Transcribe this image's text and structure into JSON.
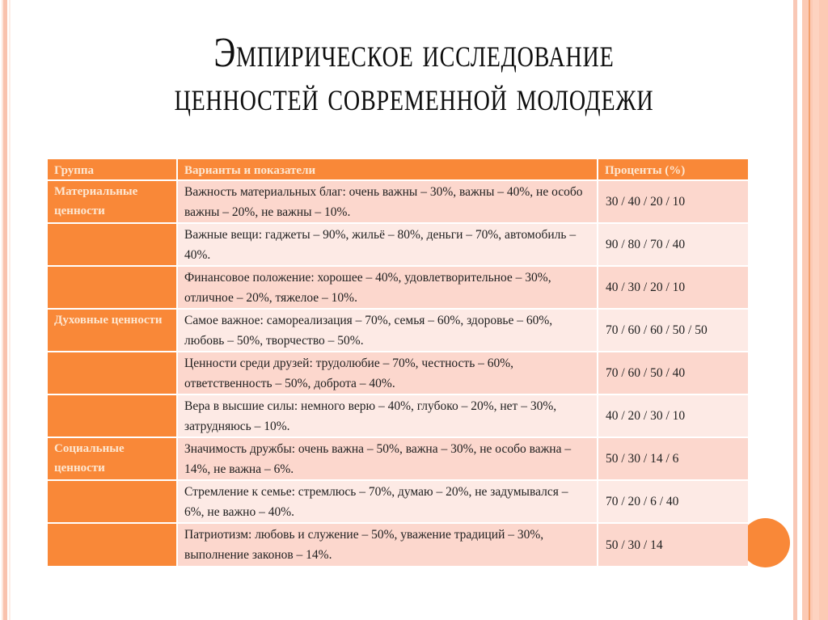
{
  "slide": {
    "title_line_1": "Эмпирическое исследование",
    "title_line_2": "ценностей современной молодежи"
  },
  "theme": {
    "accent": "#F98838",
    "header_text": "#FDE7D2",
    "row_dark": "#FCD7CD",
    "row_light": "#FDEAE5",
    "border_stripe": "#F9C2AD"
  },
  "table": {
    "headers": [
      "Группа",
      "Варианты и показатели",
      "Проценты (%)"
    ],
    "rows": [
      {
        "group": "Материальные ценности",
        "description": "Важность материальных благ: очень важны – 30%, важны – 40%, не особо важны – 20%, не важны – 10%.",
        "percent": "30 / 40 / 20 / 10"
      },
      {
        "group": "",
        "description": "Важные вещи: гаджеты – 90%, жильё – 80%, деньги – 70%, автомобиль – 40%.",
        "percent": "90 / 80 / 70 / 40"
      },
      {
        "group": "",
        "description": "Финансовое положение: хорошее – 40%, удовлетворительное – 30%, отличное – 20%, тяжелое – 10%.",
        "percent": "40 / 30 / 20 / 10"
      },
      {
        "group": "Духовные ценности",
        "description": "Самое важное: самореализация – 70%, семья – 60%, здоровье – 60%, любовь – 50%, творчество – 50%.",
        "percent": "70 / 60 / 60 / 50 / 50"
      },
      {
        "group": "",
        "description": "Ценности среди друзей: трудолюбие – 70%, честность – 60%, ответственность – 50%, доброта – 40%.",
        "percent": "70 / 60 / 50 / 40"
      },
      {
        "group": "",
        "description": "Вера в высшие силы: немного верю – 40%, глубоко – 20%, нет – 30%, затрудняюсь – 10%.",
        "percent": "40 / 20 / 30 / 10"
      },
      {
        "group": "Социальные ценности",
        "description": "Значимость дружбы: очень важна – 50%, важна – 30%, не особо важна – 14%, не важна – 6%.",
        "percent": "50 / 30 / 14 / 6"
      },
      {
        "group": "",
        "description": "Стремление к семье: стремлюсь – 70%, думаю – 20%, не задумывался – 6%, не важно – 40%.",
        "percent": "70 / 20 / 6 / 40"
      },
      {
        "group": "",
        "description": "Патриотизм: любовь и служение – 50%, уважение традиций – 30%, выполнение законов – 14%.",
        "percent": "50 / 30 / 14"
      }
    ]
  }
}
